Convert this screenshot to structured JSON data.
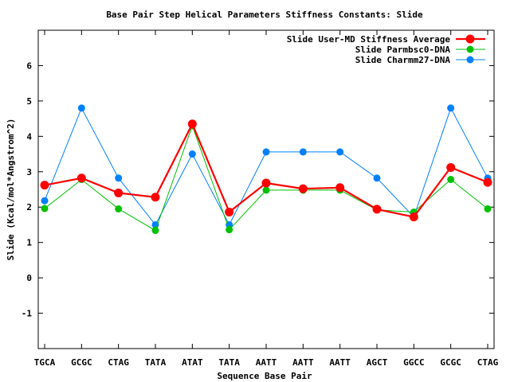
{
  "chart_data": {
    "type": "line",
    "title": "Base Pair Step Helical Parameters Stiffness Constants: Slide",
    "xlabel": "Sequence Base Pair",
    "ylabel": "Slide (Kcal/mol*Angstrom^2)",
    "ylim": [
      -2,
      7
    ],
    "yticks": [
      -1,
      0,
      1,
      2,
      3,
      4,
      5,
      6
    ],
    "grid": false,
    "legend": "top-right",
    "categories": [
      "TGCA",
      "GCGC",
      "CTAG",
      "TATA",
      "ATAT",
      "TATA",
      "AATT",
      "AATT",
      "AATT",
      "AGCT",
      "GGCC",
      "GCGC",
      "CTAG"
    ],
    "series": [
      {
        "name": "Slide User-MD Stiffness Average",
        "color": "#ff0000",
        "values": [
          2.62,
          2.82,
          2.4,
          2.28,
          4.35,
          1.86,
          2.68,
          2.52,
          2.55,
          1.94,
          1.72,
          3.12,
          2.7
        ]
      },
      {
        "name": "Slide Parmbsc0-DNA",
        "color": "#00c000",
        "values": [
          1.96,
          2.78,
          1.95,
          1.34,
          4.3,
          1.36,
          2.48,
          2.48,
          2.48,
          1.92,
          1.86,
          2.78,
          1.95
        ]
      },
      {
        "name": "Slide Charmm27-DNA",
        "color": "#0080ff",
        "values": [
          2.18,
          4.8,
          2.82,
          1.5,
          3.5,
          1.5,
          3.56,
          3.56,
          3.56,
          2.82,
          1.72,
          4.8,
          2.82
        ]
      }
    ]
  }
}
